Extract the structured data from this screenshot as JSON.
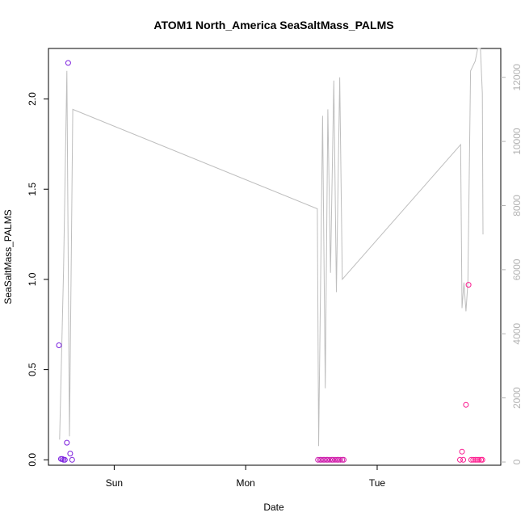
{
  "chart_data": {
    "type": "scatter",
    "title": "ATOM1 North_America SeaSaltMass_PALMS",
    "xlabel": "Date",
    "ylabel": "SeaSaltMass_PALMS",
    "x_ticks": [
      {
        "label": "Sun",
        "day": 1.0
      },
      {
        "label": "Mon",
        "day": 2.0
      },
      {
        "label": "Tue",
        "day": 3.0
      }
    ],
    "xlim_days": [
      0.5,
      3.94
    ],
    "ylim": [
      -0.03,
      2.28
    ],
    "y_ticks": [
      0.0,
      0.5,
      1.0,
      1.5,
      2.0
    ],
    "y_tick_labels": [
      "0.0",
      "0.5",
      "1.0",
      "1.5",
      "2.0"
    ],
    "y2lim": [
      -100,
      12900
    ],
    "y2_ticks": [
      0,
      2000,
      4000,
      6000,
      8000,
      10000,
      12000
    ],
    "y2_tick_labels": [
      "0",
      "2000",
      "4000",
      "6000",
      "8000",
      "10000",
      "12000"
    ],
    "grid": false,
    "series": [
      {
        "kind": "points",
        "color_start": "#7a1fe0",
        "color_end": "#ff1a8c",
        "x": [
          0.58,
          0.595,
          0.605,
          0.615,
          0.625,
          0.64,
          0.65,
          0.665,
          0.68,
          2.55,
          2.565,
          2.575,
          2.59,
          2.6,
          2.615,
          2.625,
          2.64,
          2.655,
          2.665,
          2.68,
          2.695,
          2.705,
          2.72,
          2.735,
          2.745,
          3.63,
          3.645,
          3.655,
          3.675,
          3.695,
          3.715,
          3.73,
          3.745,
          3.76,
          3.775,
          3.79,
          3.8
        ],
        "y": [
          0.635,
          0.005,
          0.005,
          0.0,
          0.0,
          0.095,
          2.2,
          0.035,
          0.0,
          0.0,
          0.0,
          0.0,
          0.0,
          0.0,
          0.0,
          0.0,
          0.0,
          0.0,
          0.0,
          0.0,
          0.0,
          0.0,
          0.0,
          0.0,
          0.0,
          0.0,
          0.045,
          0.0,
          0.305,
          0.97,
          0.0,
          0.0,
          0.0,
          0.0,
          0.0,
          0.0,
          0.0
        ]
      },
      {
        "kind": "line",
        "axis": "right",
        "color": "#bebebe",
        "x": [
          0.585,
          0.615,
          0.64,
          0.66,
          0.685,
          2.545,
          2.555,
          2.585,
          2.605,
          2.625,
          2.645,
          2.67,
          2.69,
          2.715,
          2.735,
          3.635,
          3.645,
          3.66,
          3.675,
          3.69,
          3.71,
          3.745,
          3.765,
          3.785,
          3.8,
          3.805
        ],
        "y": [
          700,
          6000,
          12200,
          800,
          11000,
          7900,
          500,
          10800,
          2300,
          11000,
          5900,
          11900,
          5300,
          12000,
          5700,
          9900,
          4800,
          5600,
          4700,
          5600,
          12200,
          12500,
          12900,
          12900,
          11500,
          7100
        ]
      }
    ]
  }
}
